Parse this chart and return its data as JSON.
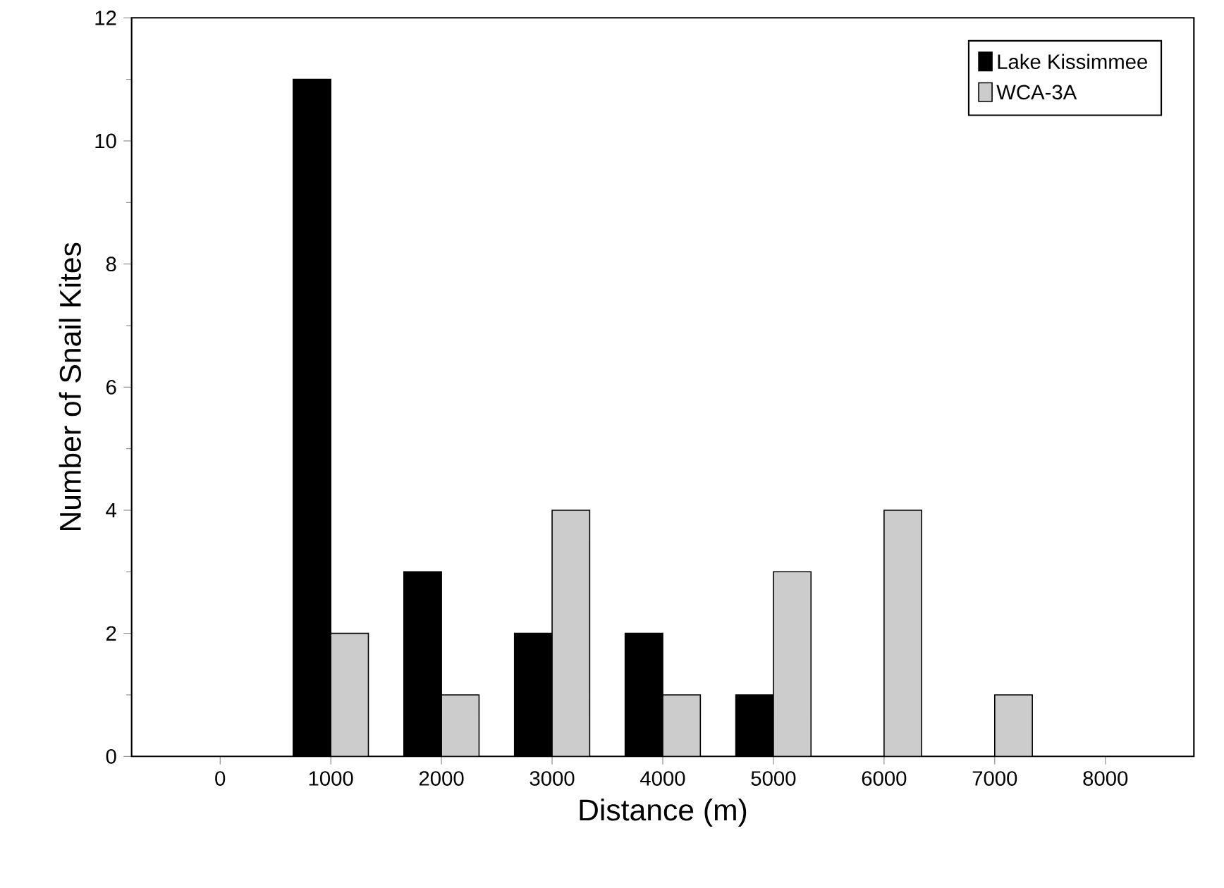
{
  "chart_data": {
    "type": "bar",
    "xlabel": "Distance (m)",
    "ylabel": "Number of Snail Kites",
    "categories": [
      "0",
      "1000",
      "2000",
      "3000",
      "4000",
      "5000",
      "6000",
      "7000",
      "8000"
    ],
    "series": [
      {
        "name": "Lake Kissimmee",
        "color": "#000000",
        "values": [
          null,
          11,
          3,
          2,
          2,
          1,
          null,
          null,
          null
        ]
      },
      {
        "name": "WCA-3A",
        "color": "#cccccc",
        "values": [
          null,
          2,
          1,
          4,
          1,
          3,
          4,
          1,
          null
        ]
      }
    ],
    "ylim": [
      0,
      12
    ],
    "yticks": [
      0,
      2,
      4,
      6,
      8,
      10,
      12
    ],
    "grid": false,
    "legend": "top right"
  }
}
